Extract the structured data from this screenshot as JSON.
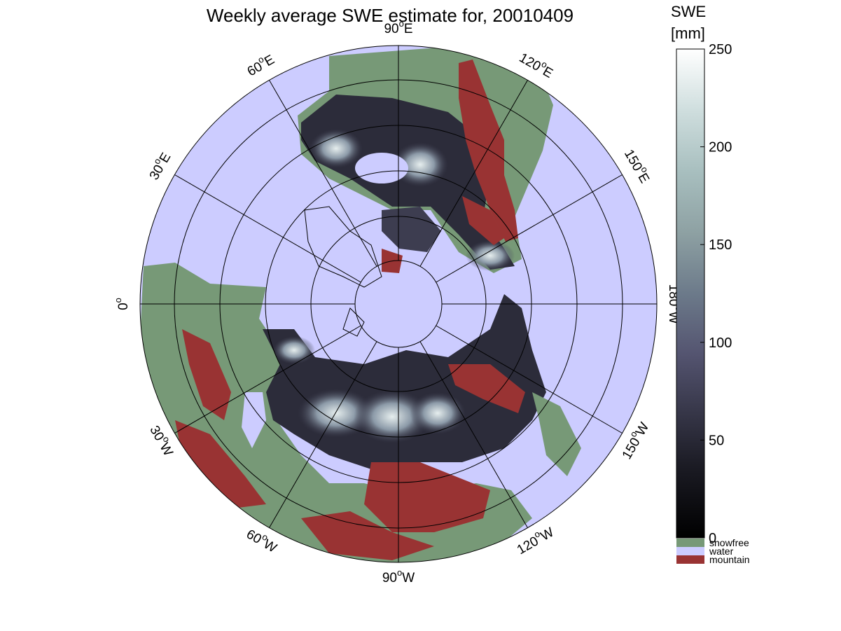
{
  "figure": {
    "title": "Weekly average SWE estimate for, 20010409"
  },
  "map": {
    "projection": "north polar stereographic",
    "center": "North Pole",
    "graticule_latitudes_deg": [
      40,
      50,
      60,
      70,
      80
    ],
    "meridian_labels": [
      {
        "lon_deg": -90,
        "label": "90°W",
        "text": "90",
        "hemi": "W"
      },
      {
        "lon_deg": -120,
        "label": "120°W",
        "text": "120",
        "hemi": "W"
      },
      {
        "lon_deg": -150,
        "label": "150°W",
        "text": "150",
        "hemi": "W"
      },
      {
        "lon_deg": 180,
        "label": "180°W",
        "text": "180",
        "hemi": "W"
      },
      {
        "lon_deg": 150,
        "label": "150°E",
        "text": "150",
        "hemi": "E"
      },
      {
        "lon_deg": 120,
        "label": "120°E",
        "text": "120",
        "hemi": "E"
      },
      {
        "lon_deg": 90,
        "label": "90°E",
        "text": "90",
        "hemi": "E"
      },
      {
        "lon_deg": 60,
        "label": "60°E",
        "text": "60",
        "hemi": "E"
      },
      {
        "lon_deg": 30,
        "label": "30°E",
        "text": "30",
        "hemi": "E"
      },
      {
        "lon_deg": 0,
        "label": "0°",
        "text": "0",
        "hemi": ""
      },
      {
        "lon_deg": -30,
        "label": "30°W",
        "text": "30",
        "hemi": "W"
      },
      {
        "lon_deg": -60,
        "label": "60°W",
        "text": "60",
        "hemi": "W"
      }
    ],
    "colors": {
      "water": "#ccccff",
      "snowfree": "#779977",
      "mountain": "#993333",
      "coastline": "#000000",
      "graticule": "#000000"
    }
  },
  "colorbar": {
    "label_line1": "SWE",
    "label_line2": "[mm]",
    "range": [
      0,
      250
    ],
    "ticks": [
      "0",
      "50",
      "100",
      "150",
      "200",
      "250"
    ],
    "colormap": "bone",
    "categories": [
      {
        "label": "snowfree",
        "color": "#779977"
      },
      {
        "label": "water",
        "color": "#ccccff"
      },
      {
        "label": "mountain",
        "color": "#993333"
      }
    ]
  }
}
